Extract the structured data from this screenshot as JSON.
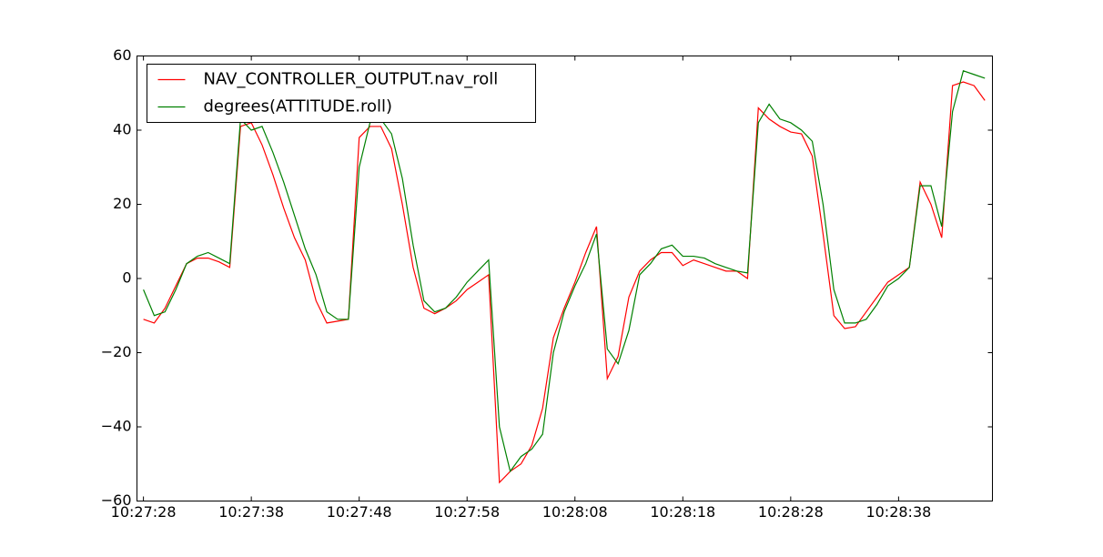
{
  "chart_data": {
    "type": "line",
    "x": [
      "10:27:28",
      "10:27:29",
      "10:27:30",
      "10:27:31",
      "10:27:32",
      "10:27:33",
      "10:27:34",
      "10:27:35",
      "10:27:36",
      "10:27:37",
      "10:27:38",
      "10:27:39",
      "10:27:40",
      "10:27:41",
      "10:27:42",
      "10:27:43",
      "10:27:44",
      "10:27:45",
      "10:27:46",
      "10:27:47",
      "10:27:48",
      "10:27:49",
      "10:27:50",
      "10:27:51",
      "10:27:52",
      "10:27:53",
      "10:27:54",
      "10:27:55",
      "10:27:56",
      "10:27:57",
      "10:27:58",
      "10:27:59",
      "10:28:00",
      "10:28:01",
      "10:28:02",
      "10:28:03",
      "10:28:04",
      "10:28:05",
      "10:28:06",
      "10:28:07",
      "10:28:08",
      "10:28:09",
      "10:28:10",
      "10:28:11",
      "10:28:12",
      "10:28:13",
      "10:28:14",
      "10:28:15",
      "10:28:16",
      "10:28:17",
      "10:28:18",
      "10:28:19",
      "10:28:20",
      "10:28:21",
      "10:28:22",
      "10:28:23",
      "10:28:24",
      "10:28:25",
      "10:28:26",
      "10:28:27",
      "10:28:28",
      "10:28:29",
      "10:28:30",
      "10:28:31",
      "10:28:32",
      "10:28:33",
      "10:28:34",
      "10:28:35",
      "10:28:36",
      "10:28:37",
      "10:28:38",
      "10:28:39",
      "10:28:40",
      "10:28:41",
      "10:28:42",
      "10:28:43",
      "10:28:44",
      "10:28:45",
      "10:28:46"
    ],
    "series": [
      {
        "name": "NAV_CONTROLLER_OUTPUT.nav_roll",
        "color": "#ff0000",
        "values": [
          -11,
          -12,
          -8,
          -2,
          4,
          5.5,
          5.5,
          4.5,
          3,
          41,
          42,
          36,
          28,
          19,
          11,
          5,
          -6,
          -12,
          -11.5,
          -11,
          38,
          41,
          41,
          35,
          20,
          3,
          -8,
          -9.5,
          -8,
          -6,
          -3,
          -1,
          1,
          -55,
          -52,
          -50,
          -45,
          -35,
          -16,
          -8,
          -1,
          7,
          14,
          -27,
          -21,
          -5,
          2,
          5,
          7,
          7,
          3.5,
          5,
          4,
          3,
          2,
          2,
          0,
          46,
          43,
          41,
          39.5,
          39,
          33,
          12,
          -10,
          -13.5,
          -13,
          -9,
          -5,
          -1,
          1,
          3,
          26,
          20,
          11,
          52,
          53,
          52,
          48
        ]
      },
      {
        "name": "degrees(ATTITUDE.roll)",
        "color": "#008000",
        "values": [
          -3,
          -10,
          -9,
          -3,
          4,
          6,
          7,
          5.5,
          4,
          43,
          40,
          41,
          34,
          26,
          17,
          8,
          1,
          -9,
          -11,
          -11,
          30,
          42,
          43,
          39,
          27,
          9,
          -6,
          -9,
          -8,
          -5,
          -1,
          2,
          5,
          -40,
          -52,
          -48,
          -46,
          -42,
          -20,
          -9,
          -2,
          4,
          12,
          -19,
          -23,
          -14,
          1,
          4,
          8,
          9,
          6,
          6,
          5.5,
          4,
          3,
          2,
          1.5,
          42,
          47,
          43,
          42,
          40,
          37,
          20,
          -3,
          -12,
          -12,
          -11,
          -7,
          -2,
          0,
          3,
          25,
          25,
          14,
          45,
          56,
          55,
          54
        ]
      }
    ],
    "xlim": [
      "10:27:27.4",
      "10:28:46.7"
    ],
    "xticks": [
      "10:27:28",
      "10:27:38",
      "10:27:48",
      "10:27:58",
      "10:28:08",
      "10:28:18",
      "10:28:28",
      "10:28:38"
    ],
    "ylim": [
      -60,
      60
    ],
    "yticks": [
      {
        "value": -60,
        "label": "−60"
      },
      {
        "value": -40,
        "label": "−40"
      },
      {
        "value": -20,
        "label": "−20"
      },
      0,
      20,
      40,
      60
    ],
    "legend": "upper left"
  }
}
